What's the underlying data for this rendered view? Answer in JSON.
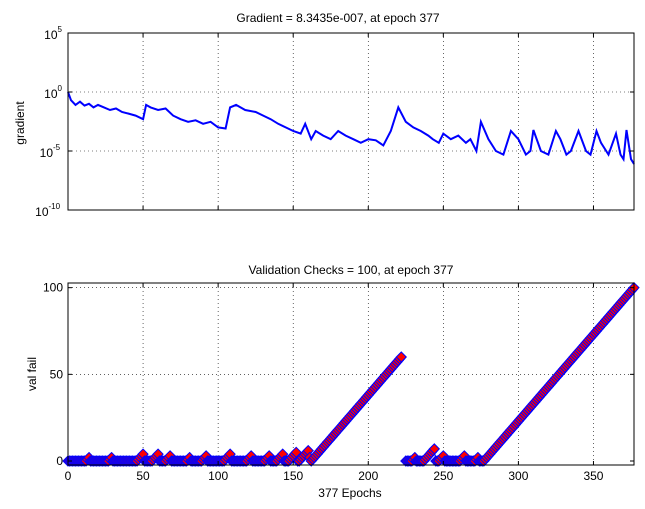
{
  "chart_data": [
    {
      "type": "line",
      "title": "Gradient = 8.3435e-007, at epoch 377",
      "ylabel": "gradient",
      "xlabel": "",
      "xlim": [
        0,
        377
      ],
      "ylim": [
        1e-10,
        100000
      ],
      "yscale": "log",
      "grid": true,
      "x_ticks": [
        0,
        50,
        100,
        150,
        200,
        250,
        300,
        350
      ],
      "y_ticks": [
        {
          "base": "10",
          "exp": "5"
        },
        {
          "base": "10",
          "exp": "0"
        },
        {
          "base": "10",
          "exp": "-5"
        },
        {
          "base": "10",
          "exp": "-10"
        }
      ],
      "line_color": "#0000ff",
      "series": [
        {
          "x": [
            0,
            2,
            5,
            8,
            11,
            14,
            17,
            20,
            24,
            28,
            32,
            36,
            40,
            45,
            50,
            52,
            55,
            60,
            65,
            70,
            75,
            80,
            85,
            90,
            95,
            100,
            105,
            108,
            112,
            118,
            125,
            130,
            135,
            140,
            145,
            150,
            155,
            158,
            162,
            165,
            170,
            175,
            180,
            185,
            190,
            195,
            200,
            205,
            210,
            215,
            220,
            225,
            230,
            235,
            240,
            243,
            247,
            250,
            255,
            260,
            265,
            268,
            272,
            275,
            280,
            285,
            290,
            295,
            300,
            305,
            308,
            310,
            315,
            320,
            325,
            328,
            332,
            335,
            340,
            345,
            348,
            352,
            355,
            360,
            365,
            368,
            370,
            372,
            375,
            377
          ],
          "values": [
            1,
            0.2,
            0.08,
            0.15,
            0.07,
            0.1,
            0.05,
            0.08,
            0.05,
            0.03,
            0.04,
            0.02,
            0.015,
            0.01,
            0.005,
            0.08,
            0.05,
            0.03,
            0.04,
            0.01,
            0.005,
            0.003,
            0.004,
            0.002,
            0.003,
            0.001,
            0.0008,
            0.05,
            0.08,
            0.03,
            0.02,
            0.01,
            0.005,
            0.002,
            0.001,
            0.0005,
            0.0003,
            0.002,
            0.0001,
            0.0005,
            0.0002,
            0.0001,
            0.0005,
            0.0002,
            0.0001,
            5e-05,
            0.0001,
            8e-05,
            3e-05,
            0.0005,
            0.05,
            0.003,
            0.001,
            0.0005,
            0.0002,
            0.0001,
            5e-05,
            0.0003,
            0.0001,
            0.0002,
            5e-05,
            0.0001,
            1e-05,
            0.003,
            0.0001,
            1e-05,
            5e-06,
            0.0005,
            0.0001,
            5e-06,
            1e-05,
            0.0006,
            1e-05,
            5e-06,
            0.0005,
            0.0001,
            5e-06,
            1e-05,
            0.0005,
            1e-05,
            5e-06,
            0.0005,
            5e-05,
            5e-06,
            0.0003,
            5e-06,
            2e-06,
            0.0006,
            2e-06,
            8e-07
          ]
        }
      ]
    },
    {
      "type": "line",
      "title": "Validation Checks = 100, at epoch 377",
      "ylabel": "val fail",
      "xlabel": "377 Epochs",
      "xlim": [
        0,
        377
      ],
      "ylim": [
        0,
        100
      ],
      "grid": true,
      "x_ticks": [
        0,
        50,
        100,
        150,
        200,
        250,
        300,
        350
      ],
      "y_ticks": [
        0,
        50,
        100
      ],
      "line_color": "#0000ff",
      "marker": "diamond",
      "marker_edge": "#0000ff",
      "marker_face": "#ff0000",
      "series": [
        {
          "segments": [
            {
              "x_start": 0,
              "x_end": 222,
              "peaks": [
                [
                  13,
                  2
                ],
                [
                  28,
                  2
                ],
                [
                  47,
                  4
                ],
                [
                  57,
                  4
                ],
                [
                  66,
                  3
                ],
                [
                  80,
                  2
                ],
                [
                  90,
                  3
                ],
                [
                  105,
                  4
                ],
                [
                  120,
                  3
                ],
                [
                  132,
                  3
                ],
                [
                  140,
                  4
                ],
                [
                  148,
                  5
                ],
                [
                  155,
                  6
                ],
                [
                  160,
                  5
                ]
              ],
              "rise_start": 162,
              "rise_value": 60
            },
            {
              "x_start": 225,
              "x_end": 377,
              "peaks": [
                [
                  230,
                  2
                ],
                [
                  238,
                  7
                ],
                [
                  248,
                  3
                ],
                [
                  262,
                  3
                ],
                [
                  272,
                  2
                ]
              ],
              "rise_start": 277,
              "rise_value": 100
            }
          ]
        }
      ]
    }
  ]
}
